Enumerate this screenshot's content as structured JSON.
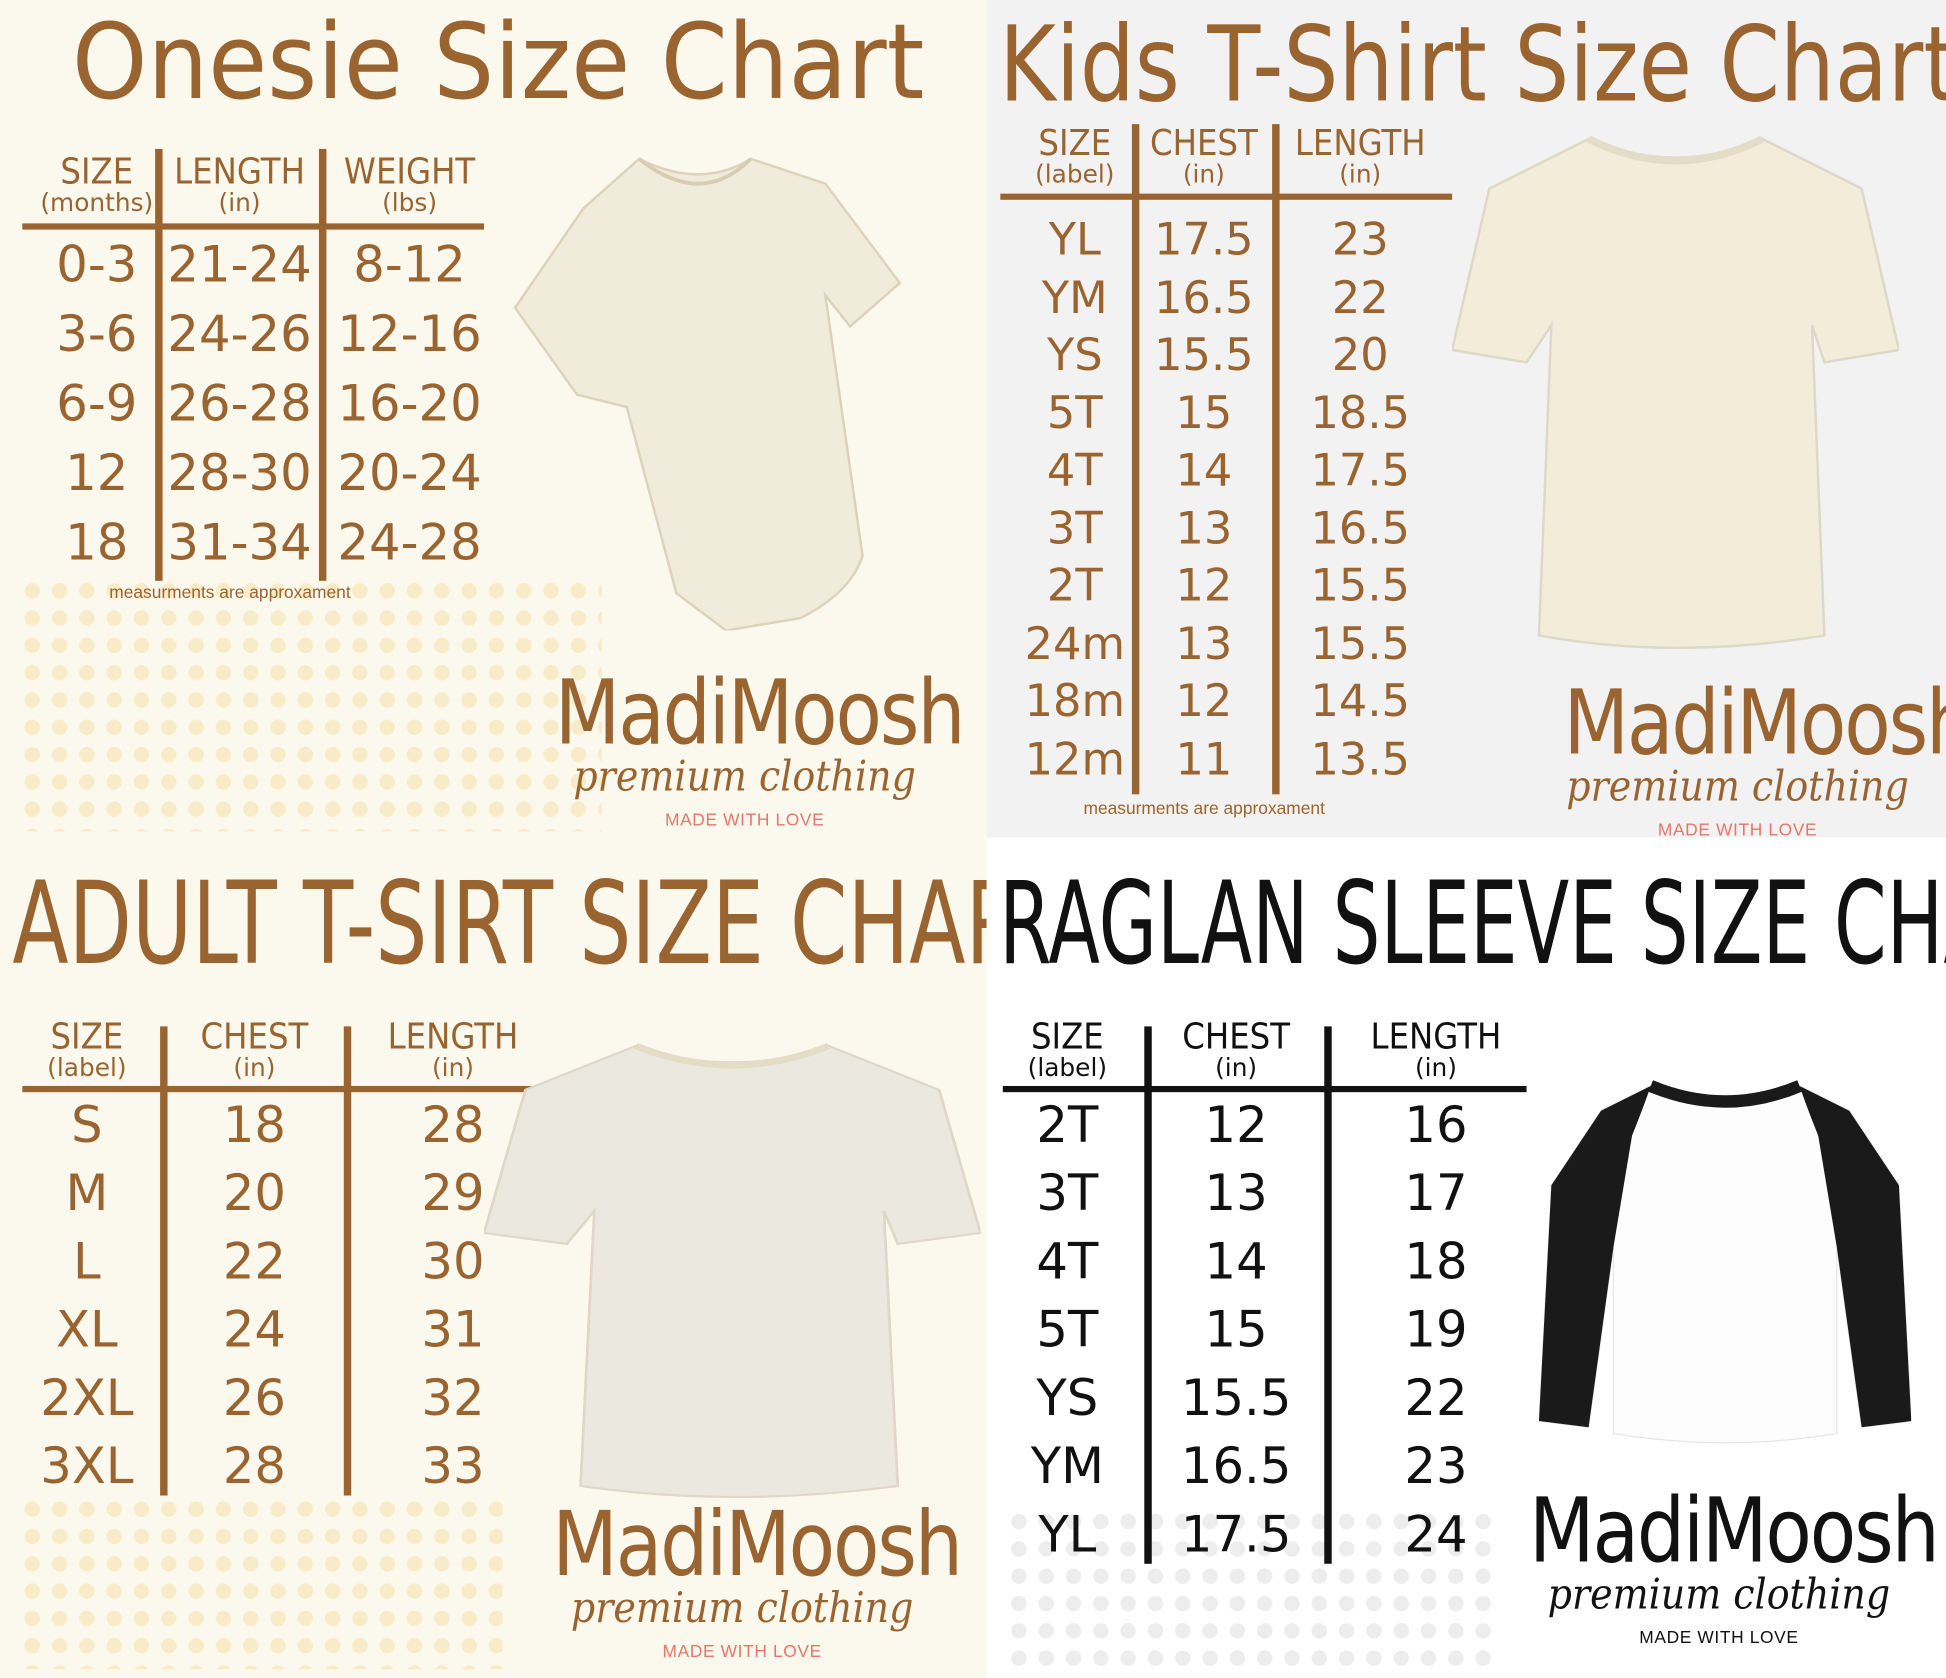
{
  "colors": {
    "brown": "#9a6430",
    "black": "#111111",
    "love_pink": "#e8756a",
    "cream": "#fbf8ee",
    "grey": "#f2f2f2",
    "white": "#ffffff"
  },
  "brand": {
    "name": "MadiMoosh",
    "tagline": "premium clothing",
    "made_with_love": "MADE WITH LOVE"
  },
  "panels": [
    {
      "id": "onesie",
      "title": "Onesie Size Chart",
      "headers": [
        {
          "label": "SIZE",
          "unit": "(months)"
        },
        {
          "label": "LENGTH",
          "unit": "(in)"
        },
        {
          "label": "WEIGHT",
          "unit": "(lbs)"
        }
      ],
      "rows": [
        [
          "0-3",
          "21-24",
          "8-12"
        ],
        [
          "3-6",
          "24-26",
          "12-16"
        ],
        [
          "6-9",
          "26-28",
          "16-20"
        ],
        [
          "12",
          "28-30",
          "20-24"
        ],
        [
          "18",
          "31-34",
          "24-28"
        ]
      ],
      "note": "measurments are approxament",
      "garment": "onesie-image"
    },
    {
      "id": "kids",
      "title": "Kids T-Shirt Size Chart",
      "headers": [
        {
          "label": "SIZE",
          "unit": "(label)"
        },
        {
          "label": "CHEST",
          "unit": "(in)"
        },
        {
          "label": "LENGTH",
          "unit": "(in)"
        }
      ],
      "rows": [
        [
          "YL",
          "17.5",
          "23"
        ],
        [
          "YM",
          "16.5",
          "22"
        ],
        [
          "YS",
          "15.5",
          "20"
        ],
        [
          "5T",
          "15",
          "18.5"
        ],
        [
          "4T",
          "14",
          "17.5"
        ],
        [
          "3T",
          "13",
          "16.5"
        ],
        [
          "2T",
          "12",
          "15.5"
        ],
        [
          "24m",
          "13",
          "15.5"
        ],
        [
          "18m",
          "12",
          "14.5"
        ],
        [
          "12m",
          "11",
          "13.5"
        ]
      ],
      "note": "measurments are approxament",
      "garment": "kids-tshirt-image"
    },
    {
      "id": "adult",
      "title": "ADULT T-SIRT SIZE CHART",
      "headers": [
        {
          "label": "SIZE",
          "unit": "(label)"
        },
        {
          "label": "CHEST",
          "unit": "(in)"
        },
        {
          "label": "LENGTH",
          "unit": "(in)"
        }
      ],
      "rows": [
        [
          "S",
          "18",
          "28"
        ],
        [
          "M",
          "20",
          "29"
        ],
        [
          "L",
          "22",
          "30"
        ],
        [
          "XL",
          "24",
          "31"
        ],
        [
          "2XL",
          "26",
          "32"
        ],
        [
          "3XL",
          "28",
          "33"
        ]
      ],
      "garment": "adult-tshirt-image"
    },
    {
      "id": "raglan",
      "title": "RAGLAN SLEEVE SIZE CHART",
      "headers": [
        {
          "label": "SIZE",
          "unit": "(label)"
        },
        {
          "label": "CHEST",
          "unit": "(in)"
        },
        {
          "label": "LENGTH",
          "unit": "(in)"
        }
      ],
      "rows": [
        [
          "2T",
          "12",
          "16"
        ],
        [
          "3T",
          "13",
          "17"
        ],
        [
          "4T",
          "14",
          "18"
        ],
        [
          "5T",
          "15",
          "19"
        ],
        [
          "YS",
          "15.5",
          "22"
        ],
        [
          "YM",
          "16.5",
          "23"
        ],
        [
          "YL",
          "17.5",
          "24"
        ]
      ],
      "garment": "raglan-shirt-image"
    }
  ]
}
